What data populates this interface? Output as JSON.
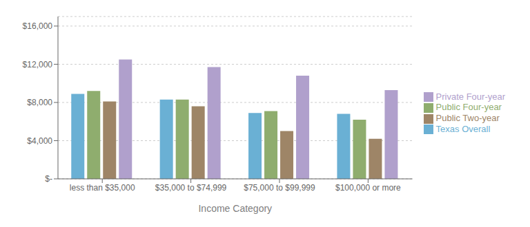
{
  "chart_data": {
    "type": "bar",
    "categories": [
      "less than $35,000",
      "$35,000 to $74,999",
      "$75,000 to $99,999",
      "$100,000 or more"
    ],
    "series": [
      {
        "name": "Texas Overall",
        "color": "#6ab0d4",
        "values": [
          8900,
          8300,
          6900,
          6800
        ]
      },
      {
        "name": "Public Four-year",
        "color": "#8fad6e",
        "values": [
          9200,
          8300,
          7100,
          6200
        ]
      },
      {
        "name": "Public Two-year",
        "color": "#9e8567",
        "values": [
          8100,
          7600,
          5000,
          4200
        ]
      },
      {
        "name": "Private Four-year",
        "color": "#b0a0cc",
        "values": [
          12500,
          11700,
          10800,
          9300
        ]
      }
    ],
    "xlabel": "Income Category",
    "ylim": [
      0,
      17000
    ],
    "yticks": [
      {
        "value": 0,
        "label": "$-"
      },
      {
        "value": 4000,
        "label": "$4,000"
      },
      {
        "value": 8000,
        "label": "$8,000"
      },
      {
        "value": 12000,
        "label": "$12,000"
      },
      {
        "value": 16000,
        "label": "$16,000"
      }
    ],
    "grid": true,
    "legend": "right"
  }
}
